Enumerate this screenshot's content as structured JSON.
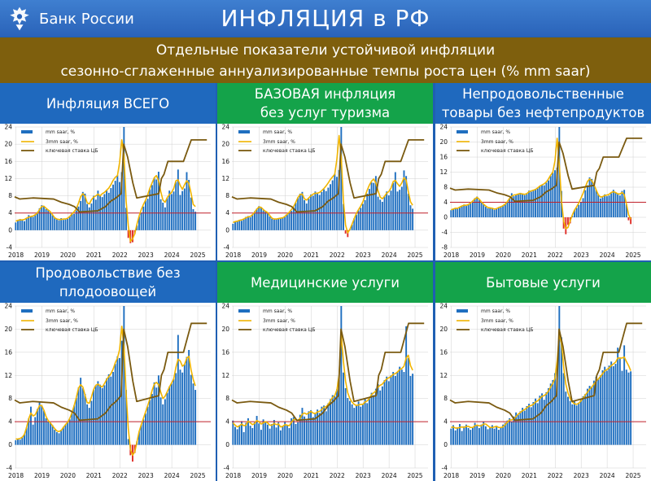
{
  "header": {
    "logo_text": "Банк России",
    "title": "ИНФЛЯЦИЯ в РФ"
  },
  "subtitle": {
    "line1": "Отдельные показатели устойчивой инфляции",
    "line2": "сезонно-сглаженные аннуализированные темпы роста цен (% mm saar)"
  },
  "legend": {
    "bars": "mm saar, %",
    "line3mm": "3mm saar, %",
    "key_rate": "ключевая ставка ЦБ"
  },
  "colors": {
    "bars": "#1f6fc0",
    "line3mm": "#f0b400",
    "key_rate": "#7a5a10",
    "target": "#c0202a",
    "blue_header": "#1f69be",
    "green_header": "#14a34a"
  },
  "key_rate": {
    "x": [
      2018.0,
      2018.2,
      2018.7,
      2019.5,
      2019.8,
      2020.1,
      2020.3,
      2020.5,
      2021.2,
      2021.5,
      2021.7,
      2021.9,
      2022.1,
      2022.2,
      2022.35,
      2022.45,
      2022.55,
      2022.7,
      2023.55,
      2023.65,
      2023.75,
      2023.9,
      2024.5,
      2024.8,
      2025.4
    ],
    "y": [
      7.75,
      7.25,
      7.5,
      7.25,
      6.5,
      6.0,
      5.5,
      4.25,
      4.5,
      5.5,
      6.75,
      7.5,
      8.5,
      20.0,
      17.0,
      14.0,
      11.0,
      7.5,
      8.5,
      12.0,
      13.0,
      16.0,
      16.0,
      21.0,
      21.0
    ]
  },
  "chart_data": [
    {
      "type": "bar",
      "title_lines": [
        "Инфляция ВСЕГО"
      ],
      "theme": "blue",
      "ylim": [
        -4,
        24
      ],
      "yticks": [
        -4,
        0,
        4,
        8,
        12,
        16,
        20,
        24
      ],
      "xticks": [
        "2018",
        "2019",
        "2020",
        "2021",
        "2022",
        "2023",
        "2024",
        "2025"
      ],
      "target": 4,
      "x_start": 2018.0,
      "values": [
        1.8,
        2.2,
        2.6,
        2.4,
        2.1,
        2.8,
        3.5,
        3.2,
        3.1,
        3.6,
        4.2,
        5.1,
        5.8,
        5.6,
        4.9,
        4.7,
        4.1,
        3.5,
        2.9,
        2.6,
        2.3,
        2.8,
        2.4,
        2.5,
        2.7,
        3.2,
        4.1,
        3.8,
        4.6,
        5.5,
        6.8,
        8.9,
        8.5,
        6.1,
        5.3,
        6.2,
        8.0,
        7.1,
        9.2,
        8.1,
        7.7,
        8.4,
        9.3,
        8.7,
        9.8,
        10.6,
        11.5,
        12.8,
        11.2,
        13.5,
        24.0,
        5.2,
        -1.8,
        -3.0,
        -2.8,
        -0.9,
        1.1,
        3.2,
        4.1,
        5.5,
        6.9,
        7.3,
        9.5,
        10.5,
        12.2,
        11.8,
        13.6,
        7.2,
        6.4,
        5.3,
        7.5,
        9.2,
        8.4,
        9.0,
        11.2,
        14.1,
        8.2,
        9.1,
        9.7,
        13.5,
        11.7,
        7.6,
        4.9,
        4.3
      ],
      "line3mm": [
        2.1,
        2.3,
        2.4,
        2.4,
        2.5,
        2.8,
        3.0,
        3.2,
        3.3,
        3.6,
        4.0,
        4.8,
        5.5,
        5.6,
        5.1,
        4.7,
        4.3,
        3.6,
        2.9,
        2.6,
        2.5,
        2.5,
        2.6,
        2.6,
        2.8,
        3.2,
        3.8,
        4.3,
        5.0,
        6.3,
        7.8,
        8.5,
        7.9,
        6.4,
        6.1,
        7.1,
        7.7,
        8.0,
        8.4,
        8.0,
        8.5,
        8.8,
        9.3,
        9.8,
        10.6,
        11.6,
        12.3,
        12.7,
        15.8,
        21.0,
        17.5,
        6.8,
        1.0,
        -2.6,
        -2.0,
        -0.8,
        1.4,
        3.3,
        4.8,
        6.0,
        7.0,
        8.3,
        9.8,
        11.0,
        12.2,
        12.7,
        11.5,
        9.0,
        7.0,
        6.5,
        7.6,
        8.3,
        8.8,
        9.7,
        11.5,
        11.7,
        10.4,
        9.5,
        10.6,
        11.5,
        10.9,
        8.6,
        6.0,
        5.5
      ]
    },
    {
      "type": "bar",
      "title_lines": [
        "БАЗОВАЯ инфляция",
        "без услуг туризма"
      ],
      "theme": "green",
      "ylim": [
        -4,
        24
      ],
      "yticks": [
        -4,
        0,
        4,
        8,
        12,
        16,
        20,
        24
      ],
      "xticks": [
        "2018",
        "2019",
        "2020",
        "2021",
        "2022",
        "2023",
        "2024",
        "2025"
      ],
      "target": 4,
      "x_start": 2018.0,
      "values": [
        1.5,
        1.9,
        2.1,
        2.4,
        2.2,
        2.6,
        3.1,
        3.3,
        3.0,
        3.7,
        4.4,
        5.0,
        5.6,
        5.2,
        4.6,
        4.5,
        4.0,
        3.2,
        2.7,
        2.5,
        2.6,
        2.8,
        2.7,
        2.9,
        3.2,
        3.6,
        4.2,
        4.5,
        5.3,
        6.4,
        7.6,
        8.5,
        8.9,
        7.0,
        6.2,
        7.3,
        8.3,
        8.0,
        9.0,
        8.7,
        8.2,
        8.9,
        9.5,
        9.1,
        9.9,
        10.7,
        11.6,
        13.1,
        12.4,
        14.0,
        24.0,
        6.1,
        -0.8,
        -1.6,
        0.2,
        1.3,
        2.8,
        3.6,
        4.6,
        5.2,
        6.1,
        7.0,
        8.5,
        9.6,
        11.1,
        11.0,
        12.6,
        7.8,
        7.1,
        6.6,
        7.9,
        9.0,
        8.1,
        9.2,
        11.0,
        13.5,
        9.0,
        9.4,
        10.1,
        13.9,
        12.6,
        8.5,
        5.8,
        5.0
      ],
      "line3mm": [
        1.8,
        2.0,
        2.1,
        2.3,
        2.4,
        2.6,
        2.9,
        3.1,
        3.2,
        3.6,
        4.2,
        4.9,
        5.4,
        5.3,
        4.8,
        4.4,
        4.1,
        3.4,
        2.8,
        2.6,
        2.6,
        2.7,
        2.8,
        2.9,
        3.2,
        3.7,
        4.2,
        4.8,
        5.5,
        6.5,
        7.6,
        8.3,
        8.4,
        7.3,
        7.0,
        7.5,
        8.0,
        8.4,
        8.6,
        8.6,
        8.8,
        9.2,
        9.7,
        10.3,
        11.0,
        11.8,
        12.4,
        13.0,
        16.5,
        22.0,
        17.0,
        7.0,
        1.2,
        -0.6,
        0.2,
        1.4,
        2.7,
        3.9,
        4.8,
        5.6,
        6.6,
        7.9,
        9.3,
        10.5,
        11.4,
        11.9,
        11.0,
        9.2,
        7.7,
        7.3,
        7.9,
        8.6,
        9.0,
        9.8,
        11.3,
        11.6,
        10.8,
        10.2,
        11.0,
        12.2,
        11.6,
        9.0,
        6.6,
        5.8
      ]
    },
    {
      "type": "bar",
      "title_lines": [
        "Непродовольственные",
        "товары без нефтепродуктов"
      ],
      "theme": "blue",
      "ylim": [
        -8,
        24
      ],
      "yticks": [
        -8,
        -4,
        0,
        4,
        8,
        12,
        16,
        20,
        24
      ],
      "xticks": [
        "2018",
        "2019",
        "2020",
        "2021",
        "2022",
        "2023",
        "2024",
        "2025"
      ],
      "target": 4,
      "x_start": 2018.0,
      "values": [
        1.9,
        2.2,
        2.5,
        2.3,
        2.8,
        3.1,
        3.4,
        3.0,
        3.5,
        4.0,
        4.4,
        5.1,
        5.5,
        4.6,
        3.9,
        3.5,
        2.8,
        2.4,
        2.6,
        2.3,
        2.0,
        2.2,
        2.6,
        2.9,
        3.1,
        3.4,
        4.2,
        5.1,
        6.4,
        5.6,
        5.9,
        6.1,
        6.5,
        6.3,
        5.9,
        6.4,
        7.1,
        6.8,
        7.2,
        7.5,
        7.7,
        8.3,
        8.6,
        8.5,
        9.2,
        9.8,
        11.0,
        11.8,
        12.5,
        13.2,
        24.0,
        7.0,
        -3.0,
        -4.5,
        -2.0,
        -1.6,
        0.4,
        1.9,
        2.5,
        3.3,
        4.1,
        5.1,
        7.2,
        8.5,
        10.6,
        10.2,
        9.1,
        7.4,
        6.1,
        5.0,
        5.3,
        6.1,
        5.6,
        5.8,
        6.4,
        7.3,
        6.6,
        6.4,
        5.8,
        7.0,
        7.3,
        3.4,
        -0.8,
        -1.8
      ],
      "line3mm": [
        2.0,
        2.2,
        2.4,
        2.4,
        2.7,
        3.0,
        3.2,
        3.2,
        3.4,
        3.8,
        4.3,
        4.9,
        5.3,
        4.8,
        4.1,
        3.5,
        3.0,
        2.6,
        2.5,
        2.4,
        2.2,
        2.3,
        2.6,
        2.8,
        3.1,
        3.5,
        4.2,
        5.0,
        5.6,
        5.9,
        6.0,
        6.2,
        6.3,
        6.2,
        6.1,
        6.3,
        6.8,
        7.0,
        7.2,
        7.4,
        7.8,
        8.3,
        8.6,
        8.9,
        9.4,
        10.2,
        11.2,
        12.0,
        15.0,
        21.0,
        14.0,
        4.5,
        -1.0,
        -3.0,
        -2.7,
        -1.0,
        0.6,
        1.9,
        2.8,
        3.8,
        5.1,
        6.4,
        8.0,
        9.5,
        10.2,
        9.7,
        8.7,
        7.3,
        6.0,
        5.4,
        5.5,
        5.8,
        5.9,
        6.1,
        6.6,
        6.8,
        6.6,
        6.2,
        6.2,
        6.6,
        6.0,
        3.6,
        0.7,
        -0.5
      ]
    },
    {
      "type": "bar",
      "title_lines": [
        "Продовольствие без",
        "плодоовощей"
      ],
      "theme": "blue",
      "ylim": [
        -4,
        24
      ],
      "yticks": [
        -4,
        0,
        4,
        8,
        12,
        16,
        20,
        24
      ],
      "xticks": [
        "2018",
        "2019",
        "2020",
        "2021",
        "2022",
        "2023",
        "2024",
        "2025"
      ],
      "target": 4,
      "x_start": 2018.0,
      "values": [
        0.8,
        1.0,
        0.9,
        1.4,
        1.8,
        3.0,
        4.6,
        6.6,
        3.5,
        4.8,
        6.2,
        7.5,
        6.8,
        5.9,
        4.6,
        4.0,
        3.8,
        3.4,
        2.6,
        2.2,
        2.0,
        2.6,
        3.1,
        3.5,
        3.9,
        4.4,
        5.9,
        6.8,
        8.1,
        9.9,
        11.6,
        9.8,
        8.8,
        7.0,
        6.4,
        7.6,
        9.5,
        10.2,
        11.0,
        10.4,
        9.8,
        10.3,
        11.5,
        12.2,
        11.8,
        12.6,
        14.0,
        15.3,
        15.0,
        18.0,
        24.0,
        9.5,
        1.0,
        -1.8,
        -2.9,
        -1.4,
        0.6,
        2.3,
        3.5,
        4.4,
        5.4,
        6.6,
        7.8,
        8.8,
        10.8,
        9.9,
        12.0,
        8.2,
        7.0,
        7.9,
        9.0,
        10.1,
        10.6,
        11.4,
        12.4,
        19.0,
        13.0,
        12.5,
        13.9,
        15.2,
        16.4,
        12.1,
        10.6,
        9.5
      ],
      "line3mm": [
        1.0,
        1.0,
        1.1,
        1.3,
        1.8,
        3.0,
        4.5,
        5.5,
        5.0,
        5.2,
        6.0,
        6.8,
        6.8,
        6.0,
        4.9,
        4.2,
        3.8,
        3.3,
        2.8,
        2.4,
        2.3,
        2.5,
        3.0,
        3.5,
        3.9,
        4.6,
        5.6,
        6.8,
        8.2,
        9.8,
        10.4,
        10.0,
        8.6,
        7.3,
        7.2,
        8.3,
        9.6,
        10.3,
        10.5,
        10.2,
        10.0,
        10.6,
        11.3,
        11.8,
        12.3,
        13.1,
        14.2,
        15.0,
        16.5,
        20.5,
        17.0,
        9.0,
        2.8,
        -0.8,
        -1.8,
        -1.2,
        0.5,
        2.3,
        3.5,
        4.6,
        5.7,
        6.8,
        8.0,
        9.4,
        10.5,
        10.8,
        10.4,
        9.1,
        8.0,
        8.4,
        9.2,
        10.0,
        10.7,
        11.4,
        13.4,
        14.8,
        14.5,
        13.6,
        13.9,
        15.0,
        15.3,
        13.0,
        11.3,
        10.2
      ]
    },
    {
      "type": "bar",
      "title_lines": [
        "Медицинские услуги"
      ],
      "theme": "green",
      "ylim": [
        -4,
        24
      ],
      "yticks": [
        -4,
        0,
        4,
        8,
        12,
        16,
        20,
        24
      ],
      "xticks": [
        "2018",
        "2019",
        "2020",
        "2021",
        "2022",
        "2023",
        "2024",
        "2025"
      ],
      "target": 4,
      "x_start": 2018.0,
      "values": [
        4.2,
        3.1,
        2.7,
        3.4,
        4.1,
        2.2,
        3.8,
        4.6,
        3.3,
        2.9,
        3.9,
        5.0,
        3.7,
        2.6,
        4.4,
        4.0,
        3.5,
        2.8,
        3.6,
        4.3,
        3.0,
        3.9,
        2.5,
        3.2,
        4.0,
        3.4,
        2.9,
        4.6,
        4.8,
        3.6,
        3.9,
        5.2,
        6.4,
        4.9,
        4.3,
        5.8,
        6.0,
        4.8,
        5.4,
        6.1,
        5.5,
        6.6,
        6.8,
        5.8,
        7.2,
        7.9,
        8.6,
        8.4,
        9.6,
        11.2,
        24.0,
        12.5,
        9.8,
        8.1,
        7.6,
        7.0,
        6.4,
        6.9,
        7.5,
        6.6,
        7.0,
        7.9,
        7.2,
        8.1,
        9.0,
        8.6,
        9.7,
        10.5,
        9.4,
        10.1,
        11.2,
        11.8,
        11.0,
        12.0,
        12.6,
        11.9,
        12.6,
        13.5,
        13.0,
        12.6,
        20.5,
        15.0,
        11.9,
        12.3
      ],
      "line3mm": [
        3.8,
        3.4,
        3.1,
        3.3,
        3.6,
        3.3,
        3.4,
        4.1,
        3.8,
        3.5,
        3.7,
        4.2,
        4.0,
        3.6,
        3.8,
        4.0,
        3.8,
        3.4,
        3.4,
        3.7,
        3.5,
        3.6,
        3.1,
        3.2,
        3.5,
        3.4,
        3.3,
        3.9,
        4.4,
        4.3,
        4.2,
        4.6,
        5.3,
        5.5,
        5.3,
        5.5,
        5.8,
        5.5,
        5.4,
        5.7,
        5.8,
        6.1,
        6.5,
        6.6,
        7.0,
        7.6,
        8.2,
        8.5,
        9.5,
        12.0,
        19.0,
        14.5,
        11.0,
        9.0,
        8.0,
        7.4,
        7.0,
        6.8,
        6.9,
        7.0,
        7.0,
        7.4,
        7.6,
        8.0,
        8.7,
        9.0,
        9.3,
        10.0,
        10.3,
        10.5,
        11.0,
        11.4,
        11.6,
        11.8,
        12.2,
        12.3,
        12.6,
        13.0,
        13.2,
        13.6,
        15.0,
        15.5,
        13.7,
        12.9
      ]
    },
    {
      "type": "bar",
      "title_lines": [
        "Бытовые услуги"
      ],
      "theme": "green",
      "ylim": [
        -4,
        24
      ],
      "yticks": [
        -4,
        0,
        4,
        8,
        12,
        16,
        20,
        24
      ],
      "xticks": [
        "2018",
        "2019",
        "2020",
        "2021",
        "2022",
        "2023",
        "2024",
        "2025"
      ],
      "target": 4,
      "x_start": 2018.0,
      "values": [
        2.8,
        3.4,
        2.5,
        3.0,
        3.6,
        2.4,
        3.2,
        3.5,
        2.9,
        2.6,
        3.1,
        3.8,
        3.3,
        2.9,
        3.5,
        4.0,
        3.2,
        2.7,
        3.0,
        3.4,
        2.8,
        3.3,
        2.6,
        3.1,
        3.5,
        3.8,
        4.2,
        4.6,
        4.0,
        4.9,
        5.6,
        5.2,
        5.8,
        6.4,
        5.9,
        6.7,
        7.1,
        6.5,
        7.4,
        8.0,
        7.2,
        8.5,
        8.9,
        7.8,
        9.1,
        9.8,
        10.6,
        11.2,
        12.4,
        13.8,
        24.0,
        18.6,
        12.4,
        9.2,
        8.3,
        7.6,
        7.0,
        7.5,
        6.8,
        7.3,
        8.0,
        8.4,
        8.8,
        9.7,
        10.2,
        10.0,
        11.1,
        11.8,
        11.3,
        12.0,
        12.9,
        13.5,
        12.8,
        13.7,
        14.4,
        13.6,
        14.0,
        16.8,
        14.9,
        12.8,
        17.2,
        13.0,
        12.5,
        12.7
      ],
      "line3mm": [
        3.0,
        3.1,
        2.9,
        2.9,
        3.0,
        3.1,
        3.0,
        3.2,
        3.2,
        3.0,
        3.0,
        3.3,
        3.4,
        3.3,
        3.3,
        3.6,
        3.6,
        3.3,
        3.0,
        3.0,
        3.1,
        3.2,
        3.0,
        3.0,
        3.1,
        3.5,
        3.9,
        4.3,
        4.3,
        4.5,
        4.9,
        5.3,
        5.6,
        5.9,
        6.1,
        6.4,
        6.7,
        6.8,
        7.0,
        7.4,
        7.6,
        8.0,
        8.4,
        8.5,
        8.8,
        9.3,
        10.0,
        10.6,
        11.5,
        14.5,
        19.0,
        17.5,
        13.5,
        10.5,
        9.0,
        8.0,
        7.4,
        7.1,
        7.0,
        7.2,
        7.6,
        8.1,
        8.6,
        9.1,
        9.6,
        10.0,
        10.5,
        11.0,
        11.4,
        11.8,
        12.3,
        12.8,
        13.0,
        13.3,
        13.7,
        14.0,
        14.3,
        15.0,
        15.0,
        15.0,
        15.2,
        14.4,
        13.7,
        12.8
      ]
    }
  ]
}
